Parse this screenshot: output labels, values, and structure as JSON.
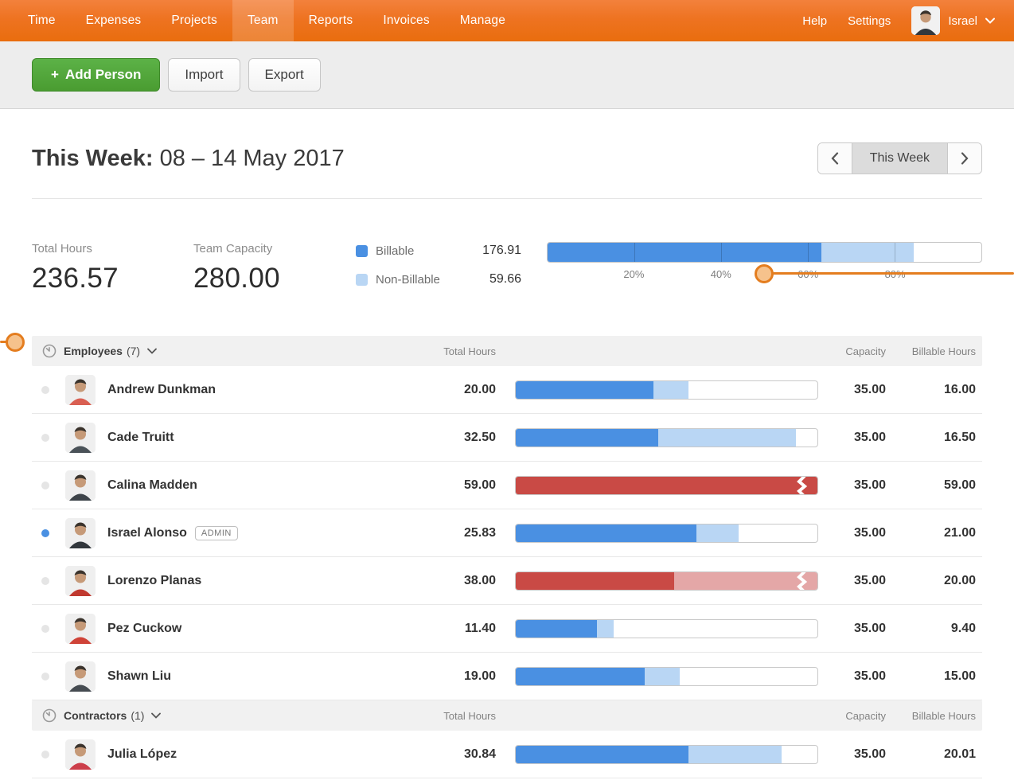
{
  "nav": {
    "items": [
      "Time",
      "Expenses",
      "Projects",
      "Team",
      "Reports",
      "Invoices",
      "Manage"
    ],
    "active_index": 3,
    "help": "Help",
    "settings": "Settings",
    "user_name": "Israel"
  },
  "toolbar": {
    "plus_icon": "+",
    "add_person_label": "Add Person",
    "import_label": "Import",
    "export_label": "Export"
  },
  "week": {
    "title_bold": "This Week:",
    "title_range": "08 – 14 May 2017",
    "current_label": "This Week"
  },
  "summary": {
    "total_hours_label": "Total Hours",
    "total_hours_value": "236.57",
    "capacity_label": "Team Capacity",
    "capacity_value": "280.00",
    "billable_label": "Billable",
    "billable_value": "176.91",
    "nonbillable_label": "Non-Billable",
    "nonbillable_value": "59.66",
    "bar": {
      "billable_pct": 63.18,
      "nonbillable_pct": 21.31,
      "ticks": [
        {
          "label": "20%",
          "pct": 20
        },
        {
          "label": "40%",
          "pct": 40
        },
        {
          "label": "60%",
          "pct": 60
        },
        {
          "label": "80%",
          "pct": 80
        }
      ],
      "slider_pct": 50
    }
  },
  "table": {
    "col_total": "Total Hours",
    "col_capacity": "Capacity",
    "col_billable": "Billable Hours",
    "groups": [
      {
        "name": "Employees",
        "count": "(7)",
        "rows": [
          {
            "name": "Andrew Dunkman",
            "total": "20.00",
            "capacity": "35.00",
            "billable": "16.00",
            "dot": "gray",
            "shirt": "#d95f52",
            "bar": {
              "over": false,
              "seg1": 45.71,
              "seg2": 11.43
            }
          },
          {
            "name": "Cade Truitt",
            "total": "32.50",
            "capacity": "35.00",
            "billable": "16.50",
            "dot": "gray",
            "shirt": "#4a5258",
            "bar": {
              "over": false,
              "seg1": 47.14,
              "seg2": 45.71
            }
          },
          {
            "name": "Calina Madden",
            "total": "59.00",
            "capacity": "35.00",
            "billable": "59.00",
            "dot": "gray",
            "shirt": "#3d4349",
            "bar": {
              "over": true,
              "seg1": 100,
              "seg2": 0
            }
          },
          {
            "name": "Israel Alonso",
            "badge": "ADMIN",
            "total": "25.83",
            "capacity": "35.00",
            "billable": "21.00",
            "dot": "blue",
            "shirt": "#32373c",
            "bar": {
              "over": false,
              "seg1": 60.0,
              "seg2": 13.8
            }
          },
          {
            "name": "Lorenzo Planas",
            "total": "38.00",
            "capacity": "35.00",
            "billable": "20.00",
            "dot": "gray",
            "shirt": "#c0392f",
            "bar": {
              "over": true,
              "seg1": 52.63,
              "seg2": 47.37
            }
          },
          {
            "name": "Pez Cuckow",
            "total": "11.40",
            "capacity": "35.00",
            "billable": "9.40",
            "dot": "gray",
            "shirt": "#cf4338",
            "bar": {
              "over": false,
              "seg1": 26.86,
              "seg2": 5.71
            }
          },
          {
            "name": "Shawn Liu",
            "total": "19.00",
            "capacity": "35.00",
            "billable": "15.00",
            "dot": "gray",
            "shirt": "#454b51",
            "bar": {
              "over": false,
              "seg1": 42.86,
              "seg2": 11.43
            }
          }
        ]
      },
      {
        "name": "Contractors",
        "count": "(1)",
        "rows": [
          {
            "name": "Julia López",
            "total": "30.84",
            "capacity": "35.00",
            "billable": "20.01",
            "dot": "gray",
            "shirt": "#cc3e4a",
            "bar": {
              "over": false,
              "seg1": 57.17,
              "seg2": 30.94
            }
          }
        ]
      }
    ]
  },
  "colors": {
    "billable": "#4a90e2",
    "nonbillable": "#b9d6f4",
    "over": "#c94a45",
    "over_light": "#e4a7a7",
    "dot_active": "#4a90e2",
    "dot_idle": "#e5e5e5",
    "accent_orange": "#e47d1f"
  }
}
